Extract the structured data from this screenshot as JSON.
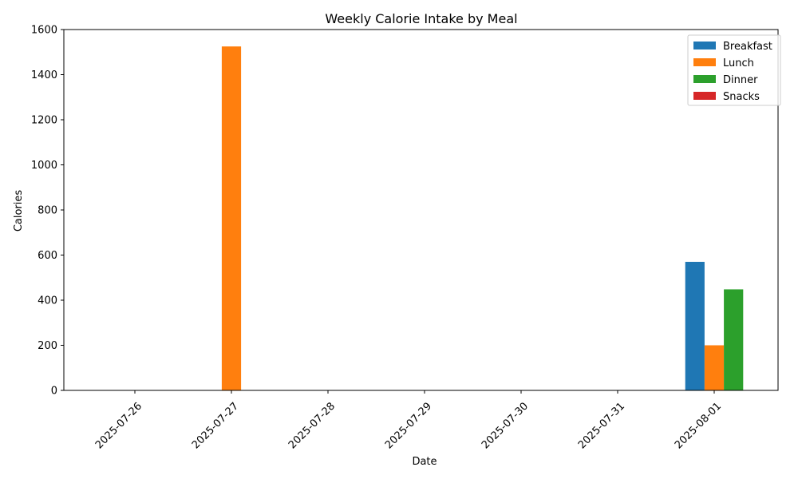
{
  "chart_data": {
    "type": "bar",
    "title": "Weekly Calorie Intake by Meal",
    "xlabel": "Date",
    "ylabel": "Calories",
    "categories": [
      "2025-07-26",
      "2025-07-27",
      "2025-07-28",
      "2025-07-29",
      "2025-07-30",
      "2025-07-31",
      "2025-08-01"
    ],
    "series": [
      {
        "name": "Breakfast",
        "color": "#1f77b4",
        "values": [
          0,
          0,
          0,
          0,
          0,
          0,
          570
        ]
      },
      {
        "name": "Lunch",
        "color": "#ff7f0e",
        "values": [
          0,
          1525,
          0,
          0,
          0,
          0,
          200
        ]
      },
      {
        "name": "Dinner",
        "color": "#2ca02c",
        "values": [
          0,
          0,
          0,
          0,
          0,
          0,
          448
        ]
      },
      {
        "name": "Snacks",
        "color": "#d62728",
        "values": [
          0,
          0,
          0,
          0,
          0,
          0,
          0
        ]
      }
    ],
    "ylim": [
      0,
      1600
    ],
    "yticks": [
      0,
      200,
      400,
      600,
      800,
      1000,
      1200,
      1400,
      1600
    ],
    "grid": false,
    "legend_position": "top-right"
  }
}
